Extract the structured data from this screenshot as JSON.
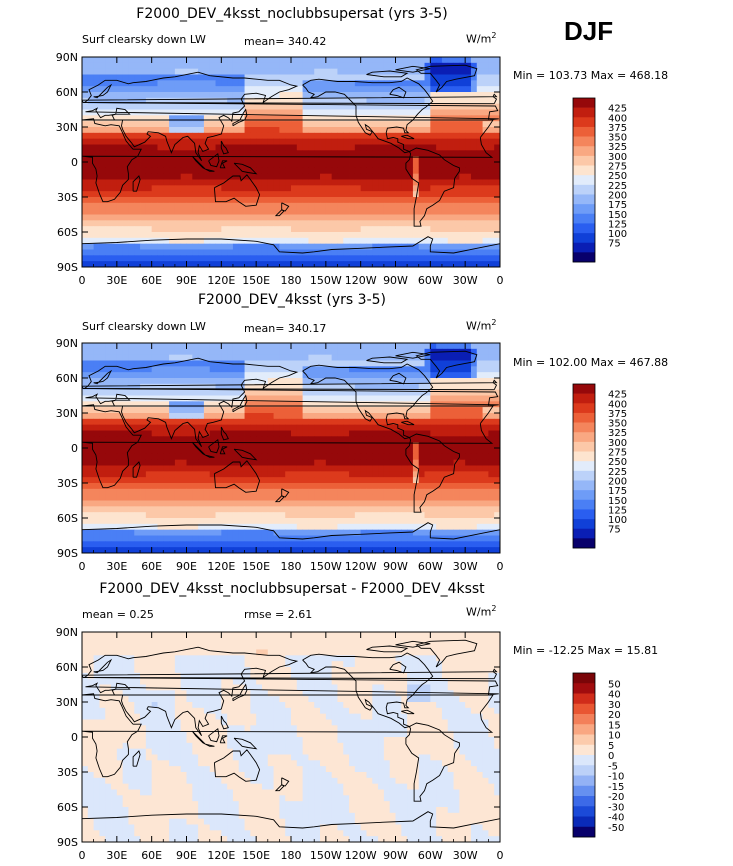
{
  "season": "DJF",
  "colors": {
    "abs_palette": [
      "#08006b",
      "#0a1eb4",
      "#1040d8",
      "#2a5ef0",
      "#4a7ff5",
      "#6e9cf7",
      "#95b7f8",
      "#bcd2f9",
      "#e2ecfb",
      "#fde4cf",
      "#fcc8a8",
      "#f9a882",
      "#f4855c",
      "#ec6038",
      "#dc3a1c",
      "#c11e0f",
      "#96080a"
    ],
    "diff_palette": [
      "#08006b",
      "#0a2ab8",
      "#1b4ad8",
      "#3c6ae8",
      "#6690f0",
      "#93b2f5",
      "#bcd1f8",
      "#dbe7fb",
      "#fde6d4",
      "#fccbac",
      "#f9a782",
      "#f3805a",
      "#e95632",
      "#d02c1a",
      "#a10c0e",
      "#7a0508"
    ],
    "land": "#000000"
  },
  "panels": [
    {
      "title": "F2000_DEV_4ksst_noclubbsupersat (yrs 3-5)",
      "left_label": "Surf clearsky down LW",
      "center_label": "mean= 340.42",
      "units": "W/m",
      "units_exp": "2",
      "minmax": "Min = 103.73 Max = 468.18"
    },
    {
      "title": "F2000_DEV_4ksst (yrs 3-5)",
      "left_label": "Surf clearsky down LW",
      "center_label": "mean= 340.17",
      "units": "W/m",
      "units_exp": "2",
      "minmax": "Min = 102.00 Max = 467.88"
    },
    {
      "title": "F2000_DEV_4ksst_noclubbsupersat - F2000_DEV_4ksst",
      "left_label": "mean =    0.25",
      "center_label": "rmse =    2.61",
      "units": "W/m",
      "units_exp": "2",
      "minmax": "Min = -12.25 Max =  15.81"
    }
  ],
  "chart_data": [
    {
      "type": "heatmap",
      "title": "F2000_DEV_4ksst_noclubbsupersat (yrs 3-5)",
      "variable": "Surf clearsky down LW",
      "units": "W/m2",
      "mean": 340.42,
      "min": 103.73,
      "max": 468.18,
      "x_ticks": [
        "0",
        "30E",
        "60E",
        "90E",
        "120E",
        "150E",
        "180",
        "150W",
        "120W",
        "90W",
        "60W",
        "30W",
        "0"
      ],
      "y_ticks": [
        "90N",
        "60N",
        "30N",
        "0",
        "30S",
        "60S",
        "90S"
      ],
      "colorbar_levels": [
        75,
        100,
        125,
        150,
        175,
        200,
        225,
        250,
        275,
        300,
        325,
        350,
        375,
        400,
        425
      ]
    },
    {
      "type": "heatmap",
      "title": "F2000_DEV_4ksst (yrs 3-5)",
      "variable": "Surf clearsky down LW",
      "units": "W/m2",
      "mean": 340.17,
      "min": 102.0,
      "max": 467.88,
      "x_ticks": [
        "0",
        "30E",
        "60E",
        "90E",
        "120E",
        "150E",
        "180",
        "150W",
        "120W",
        "90W",
        "60W",
        "30W",
        "0"
      ],
      "y_ticks": [
        "90N",
        "60N",
        "30N",
        "0",
        "30S",
        "60S",
        "90S"
      ],
      "colorbar_levels": [
        75,
        100,
        125,
        150,
        175,
        200,
        225,
        250,
        275,
        300,
        325,
        350,
        375,
        400,
        425
      ]
    },
    {
      "type": "heatmap",
      "title": "F2000_DEV_4ksst_noclubbsupersat - F2000_DEV_4ksst",
      "units": "W/m2",
      "mean": 0.25,
      "rmse": 2.61,
      "min": -12.25,
      "max": 15.81,
      "x_ticks": [
        "0",
        "30E",
        "60E",
        "90E",
        "120E",
        "150E",
        "180",
        "150W",
        "120W",
        "90W",
        "60W",
        "30W",
        "0"
      ],
      "y_ticks": [
        "90N",
        "60N",
        "30N",
        "0",
        "30S",
        "60S",
        "90S"
      ],
      "colorbar_levels": [
        -50,
        -40,
        -30,
        -20,
        -15,
        -10,
        -5,
        0,
        5,
        10,
        15,
        20,
        30,
        40,
        50
      ]
    }
  ]
}
